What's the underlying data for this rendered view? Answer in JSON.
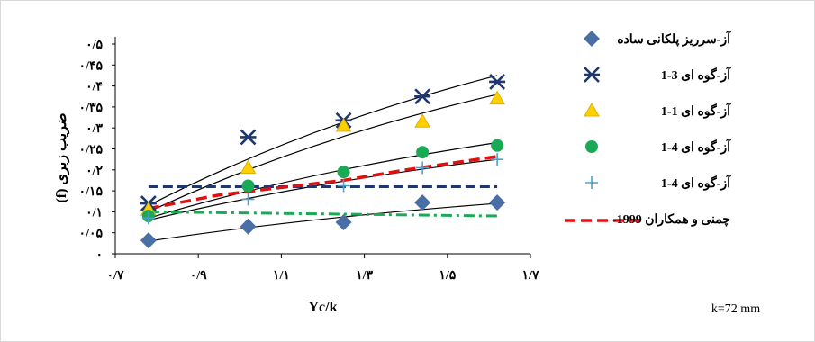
{
  "chart_data": {
    "type": "scatter",
    "xlabel": "Yc/k",
    "ylabel": "ضریب زبری (f)",
    "xlim": [
      0.7,
      1.7
    ],
    "ylim": [
      0,
      0.5
    ],
    "x_ticks": [
      0.7,
      0.9,
      1.1,
      1.3,
      1.5,
      1.7
    ],
    "x_tick_labels": [
      "۰/۷",
      "۰/۹",
      "۱/۱",
      "۱/۳",
      "۱/۵",
      "۱/۷"
    ],
    "y_ticks": [
      0,
      0.05,
      0.1,
      0.15,
      0.2,
      0.25,
      0.3,
      0.35,
      0.4,
      0.45,
      0.5
    ],
    "y_tick_labels": [
      "۰",
      "۰/۰۵",
      "۰/۱",
      "۰/۱۵",
      "۰/۲",
      "۰/۲۵",
      "۰/۳",
      "۰/۳۵",
      "۰/۴",
      "۰/۴۵",
      "۰/۵"
    ],
    "legend_position": "right",
    "series": [
      {
        "name": "آز-سرریز پلکانی ساده",
        "marker": "diamond",
        "color": "#4a6fa5",
        "x": [
          0.78,
          1.02,
          1.25,
          1.44,
          1.62
        ],
        "y": [
          0.032,
          0.065,
          0.075,
          0.122,
          0.122
        ],
        "trend": [
          [
            0.78,
            0.03
          ],
          [
            1.62,
            0.12
          ]
        ]
      },
      {
        "name": "آز-گوه ای 3-1",
        "marker": "asterisk",
        "color": "#1f3770",
        "x": [
          0.78,
          1.02,
          1.25,
          1.44,
          1.62
        ],
        "y": [
          0.12,
          0.278,
          0.318,
          0.375,
          0.41
        ],
        "trend": [
          [
            0.78,
            0.115
          ],
          [
            1.62,
            0.425
          ]
        ]
      },
      {
        "name": "آز-گوه ای 1-1",
        "marker": "triangle",
        "color": "#ffd000",
        "x": [
          0.78,
          1.02,
          1.25,
          1.44,
          1.62
        ],
        "y": [
          0.105,
          0.205,
          0.305,
          0.315,
          0.37
        ],
        "trend": [
          [
            0.78,
            0.1
          ],
          [
            1.62,
            0.38
          ]
        ]
      },
      {
        "name": "آز-گوه ای 4-1",
        "marker": "circle",
        "color": "#1aaa55",
        "x": [
          0.78,
          1.02,
          1.25,
          1.44,
          1.62
        ],
        "y": [
          0.09,
          0.162,
          0.195,
          0.242,
          0.258
        ],
        "trend": [
          [
            0.78,
            0.085
          ],
          [
            1.62,
            0.265
          ]
        ]
      },
      {
        "name": "آز-گوه ای 4-1",
        "marker": "plus",
        "color": "#4ea0cf",
        "x": [
          0.78,
          1.02,
          1.25,
          1.44,
          1.62
        ],
        "y": [
          0.085,
          0.13,
          0.162,
          0.205,
          0.225
        ],
        "trend": [
          [
            0.78,
            0.08
          ],
          [
            1.62,
            0.225
          ]
        ]
      },
      {
        "name": "چمنی و همکاران 1999-",
        "line_style": "dashed",
        "color": "#e01010",
        "x": [
          0.78,
          0.95,
          1.1,
          1.25,
          1.4,
          1.62
        ],
        "y": [
          0.108,
          0.14,
          0.158,
          0.175,
          0.2,
          0.232
        ]
      }
    ],
    "unlabeled_lines": [
      {
        "line_style": "dashed",
        "color": "#1f3770",
        "x": [
          0.78,
          1.62
        ],
        "y": [
          0.16,
          0.16
        ]
      },
      {
        "line_style": "dash-dot",
        "color": "#1aaa55",
        "x": [
          0.78,
          1.62
        ],
        "y": [
          0.1,
          0.09
        ]
      }
    ],
    "annotation": "k=72 mm"
  }
}
